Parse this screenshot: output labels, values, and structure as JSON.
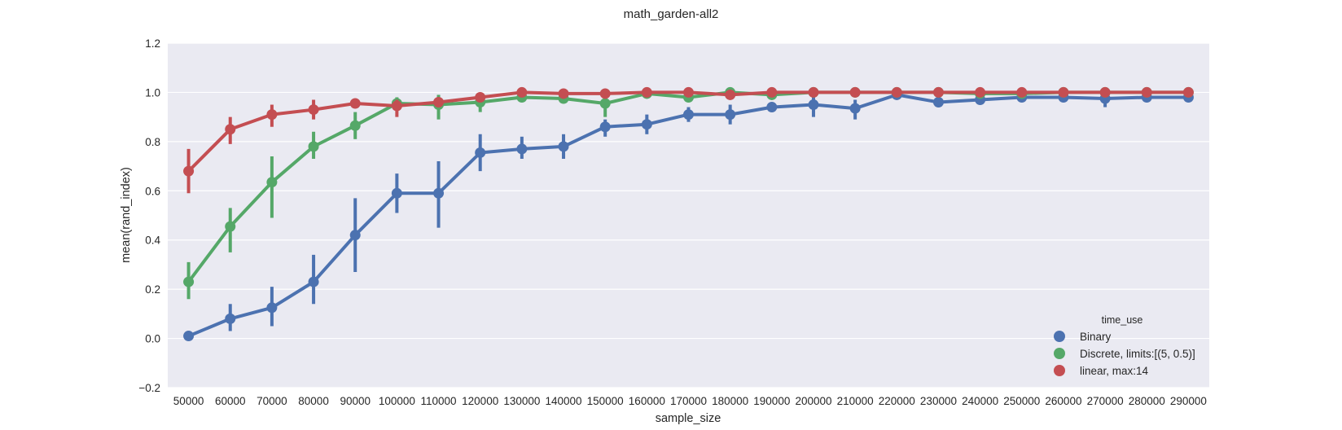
{
  "chart_data": {
    "type": "line",
    "title": "math_garden-all2",
    "xlabel": "sample_size",
    "ylabel": "mean(rand_index)",
    "ylim": [
      -0.2,
      1.2
    ],
    "yticks": [
      "−0.2",
      "0.0",
      "0.2",
      "0.4",
      "0.6",
      "0.8",
      "1.0",
      "1.2"
    ],
    "categories": [
      "50000",
      "60000",
      "70000",
      "80000",
      "90000",
      "100000",
      "110000",
      "120000",
      "130000",
      "140000",
      "150000",
      "160000",
      "170000",
      "180000",
      "190000",
      "200000",
      "210000",
      "220000",
      "230000",
      "240000",
      "250000",
      "260000",
      "270000",
      "280000",
      "290000"
    ],
    "grid": true,
    "legend_position": "bottom-right",
    "legend_title": "time_use",
    "series": [
      {
        "name": "Binary",
        "color": "#4c72b0",
        "values": [
          0.01,
          0.08,
          0.125,
          0.23,
          0.42,
          0.59,
          0.59,
          0.755,
          0.77,
          0.78,
          0.86,
          0.87,
          0.91,
          0.91,
          0.94,
          0.95,
          0.935,
          0.99,
          0.96,
          0.97,
          0.98,
          0.98,
          0.975,
          0.98,
          0.98
        ],
        "ci_low": [
          0.0,
          0.03,
          0.05,
          0.14,
          0.27,
          0.51,
          0.45,
          0.68,
          0.73,
          0.73,
          0.82,
          0.83,
          0.88,
          0.87,
          0.92,
          0.9,
          0.89,
          0.98,
          0.94,
          0.95,
          0.96,
          0.97,
          0.94,
          0.96,
          0.96
        ],
        "ci_high": [
          0.02,
          0.14,
          0.21,
          0.34,
          0.57,
          0.67,
          0.72,
          0.83,
          0.82,
          0.83,
          0.89,
          0.91,
          0.94,
          0.95,
          0.96,
          0.99,
          0.97,
          1.0,
          0.98,
          0.99,
          1.0,
          0.99,
          1.0,
          1.0,
          1.0
        ]
      },
      {
        "name": "Discrete, limits:[(5, 0.5)]",
        "color": "#55a868",
        "values": [
          0.23,
          0.455,
          0.635,
          0.78,
          0.865,
          0.955,
          0.95,
          0.96,
          0.98,
          0.975,
          0.955,
          0.995,
          0.98,
          1.0,
          0.99,
          1.0,
          1.0,
          1.0,
          1.0,
          0.995,
          0.995,
          1.0,
          1.0,
          1.0,
          1.0
        ],
        "ci_low": [
          0.16,
          0.35,
          0.49,
          0.73,
          0.81,
          0.93,
          0.89,
          0.92,
          0.97,
          0.96,
          0.9,
          0.99,
          0.96,
          1.0,
          0.98,
          1.0,
          1.0,
          1.0,
          1.0,
          0.99,
          0.99,
          1.0,
          1.0,
          1.0,
          1.0
        ],
        "ci_high": [
          0.31,
          0.53,
          0.74,
          0.84,
          0.92,
          0.98,
          0.99,
          0.99,
          0.99,
          0.99,
          0.99,
          1.0,
          0.99,
          1.0,
          1.0,
          1.0,
          1.0,
          1.0,
          1.0,
          1.0,
          1.0,
          1.0,
          1.0,
          1.0,
          1.0
        ]
      },
      {
        "name": "linear, max:14",
        "color": "#c44e52",
        "values": [
          0.68,
          0.85,
          0.91,
          0.93,
          0.955,
          0.945,
          0.96,
          0.98,
          1.0,
          0.995,
          0.995,
          1.0,
          1.0,
          0.99,
          1.0,
          1.0,
          1.0,
          1.0,
          1.0,
          1.0,
          1.0,
          1.0,
          1.0,
          1.0,
          1.0
        ],
        "ci_low": [
          0.59,
          0.79,
          0.86,
          0.89,
          0.94,
          0.9,
          0.94,
          0.97,
          0.99,
          0.99,
          0.99,
          1.0,
          1.0,
          0.97,
          1.0,
          1.0,
          1.0,
          1.0,
          1.0,
          1.0,
          1.0,
          1.0,
          1.0,
          1.0,
          1.0
        ],
        "ci_high": [
          0.77,
          0.9,
          0.95,
          0.97,
          0.97,
          0.97,
          0.98,
          0.99,
          1.0,
          1.0,
          1.0,
          1.0,
          1.0,
          1.0,
          1.0,
          1.0,
          1.0,
          1.0,
          1.0,
          1.0,
          1.0,
          1.0,
          1.0,
          1.0,
          1.0
        ]
      }
    ]
  }
}
